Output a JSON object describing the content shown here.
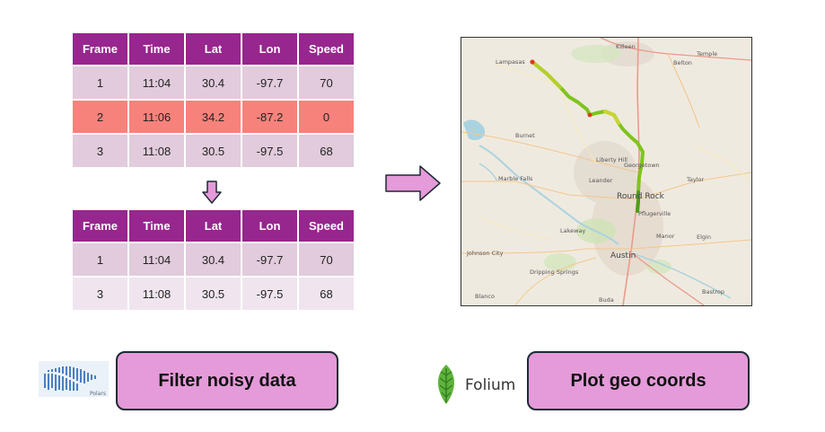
{
  "columns": [
    "Frame",
    "Time",
    "Lat",
    "Lon",
    "Speed"
  ],
  "top_table": {
    "rows": [
      [
        "1",
        "11:04",
        "30.4",
        "-97.7",
        "70"
      ],
      [
        "2",
        "11:06",
        "34.2",
        "-87.2",
        "0"
      ],
      [
        "3",
        "11:08",
        "30.5",
        "-97.5",
        "68"
      ]
    ]
  },
  "bottom_table": {
    "rows": [
      [
        "1",
        "11:04",
        "30.4",
        "-97.7",
        "70"
      ],
      [
        "3",
        "11:08",
        "30.5",
        "-97.5",
        "68"
      ]
    ]
  },
  "buttons": {
    "filter": "Filter noisy data",
    "plot": "Plot geo coords"
  },
  "logos": {
    "polars": "Polars",
    "folium": "Folium"
  },
  "map": {
    "cities": {
      "killeen": "Killeen",
      "temple": "Temple",
      "belton": "Belton",
      "lampasas": "Lampasas",
      "burnet": "Burnet",
      "liberty_hill": "Liberty Hill",
      "georgetown": "Georgetown",
      "marble_falls": "Marble Falls",
      "leander": "Leander",
      "round_rock": "Round Rock",
      "taylor": "Taylor",
      "pflugerville": "Pflugerville",
      "lakeway": "Lakeway",
      "manor": "Manor",
      "elgin": "Elgin",
      "johnson_city": "Johnson City",
      "austin": "Austin",
      "dripping_springs": "Dripping Springs",
      "blanco": "Blanco",
      "buda": "Buda",
      "bastrop": "Bastrop"
    }
  },
  "colors": {
    "header": "#97268e",
    "row_light": "#e1cbdc",
    "row_noise": "#f7827b",
    "row_faint": "#f0e5ee",
    "button": "#e59ad9",
    "arrow": "#e59ad9",
    "route": "#7fc41c"
  }
}
